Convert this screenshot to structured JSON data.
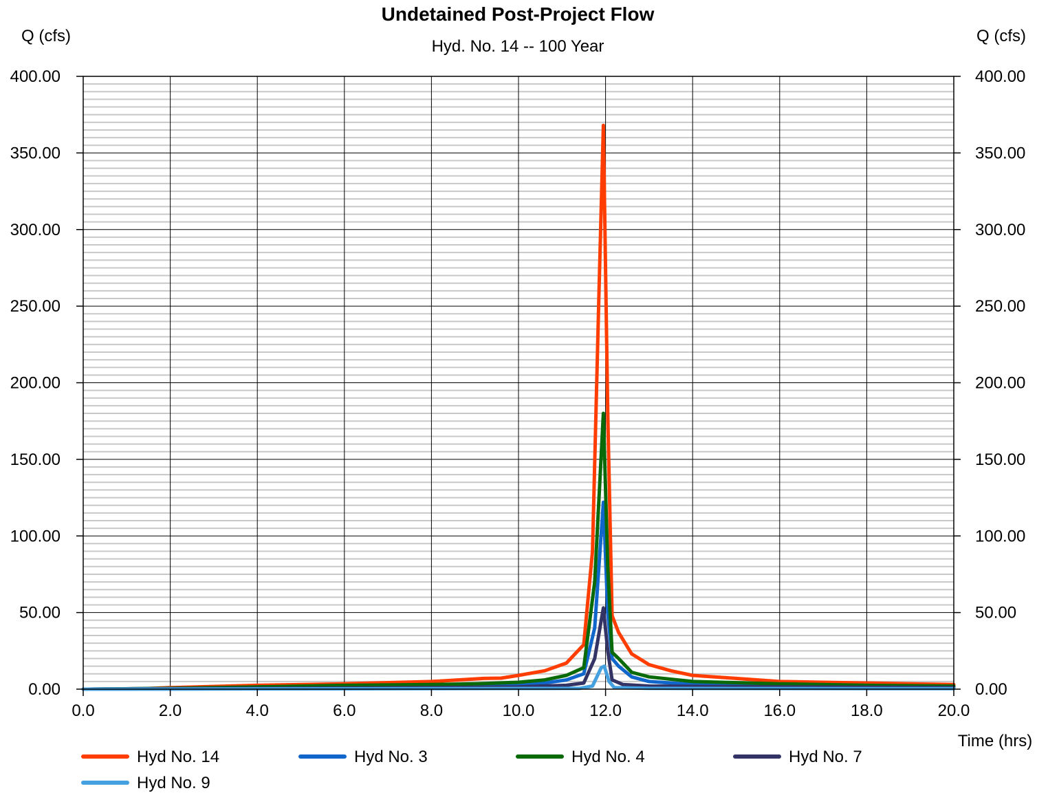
{
  "chart_data": {
    "type": "line",
    "title": "Undetained Post-Project Flow",
    "subtitle": "Hyd. No. 14 -- 100 Year",
    "ylabel_left": "Q (cfs)",
    "ylabel_right": "Q (cfs)",
    "xlabel": "Time (hrs)",
    "xlim": [
      0,
      20
    ],
    "ylim": [
      0,
      400
    ],
    "x_ticks": [
      "0.0",
      "2.0",
      "4.0",
      "6.0",
      "8.0",
      "10.0",
      "12.0",
      "14.0",
      "16.0",
      "18.0",
      "20.0"
    ],
    "y_ticks": [
      "0.00",
      "50.00",
      "100.00",
      "150.00",
      "200.00",
      "250.00",
      "300.00",
      "350.00",
      "400.00"
    ],
    "grid": true,
    "legend_position": "bottom",
    "series": [
      {
        "name": "Hyd No. 14",
        "color": "#ff3d00",
        "points": [
          [
            0,
            0
          ],
          [
            1.4,
            0.3
          ],
          [
            2,
            1
          ],
          [
            4,
            2.5
          ],
          [
            6,
            3.5
          ],
          [
            8,
            5
          ],
          [
            9.2,
            7
          ],
          [
            9.6,
            7.2
          ],
          [
            10,
            9
          ],
          [
            10.6,
            12
          ],
          [
            11.1,
            17
          ],
          [
            11.5,
            29
          ],
          [
            11.7,
            90
          ],
          [
            11.85,
            260
          ],
          [
            11.95,
            368
          ],
          [
            12.05,
            180
          ],
          [
            12.15,
            48
          ],
          [
            12.3,
            37
          ],
          [
            12.6,
            23
          ],
          [
            13,
            16
          ],
          [
            13.5,
            12
          ],
          [
            14,
            9
          ],
          [
            15,
            7
          ],
          [
            16,
            5
          ],
          [
            17,
            4.5
          ],
          [
            18,
            4
          ],
          [
            19,
            3.5
          ],
          [
            20,
            3
          ]
        ]
      },
      {
        "name": "Hyd No. 3",
        "color": "#1166cc",
        "points": [
          [
            0,
            0
          ],
          [
            2,
            0.5
          ],
          [
            4,
            1
          ],
          [
            6,
            1.5
          ],
          [
            8,
            2
          ],
          [
            9,
            2.5
          ],
          [
            10,
            3
          ],
          [
            10.6,
            4
          ],
          [
            11.1,
            6
          ],
          [
            11.5,
            10
          ],
          [
            11.75,
            40
          ],
          [
            11.95,
            122
          ],
          [
            12.05,
            50
          ],
          [
            12.15,
            20
          ],
          [
            12.3,
            15
          ],
          [
            12.6,
            8
          ],
          [
            13,
            5
          ],
          [
            14,
            3
          ],
          [
            16,
            2
          ],
          [
            18,
            1.5
          ],
          [
            20,
            1
          ]
        ]
      },
      {
        "name": "Hyd No. 4",
        "color": "#0a6a0a",
        "points": [
          [
            0,
            0
          ],
          [
            2,
            0.5
          ],
          [
            4,
            1.5
          ],
          [
            6,
            2.5
          ],
          [
            8,
            3
          ],
          [
            9,
            3.5
          ],
          [
            10,
            4.5
          ],
          [
            10.6,
            6
          ],
          [
            11.1,
            9
          ],
          [
            11.5,
            14
          ],
          [
            11.75,
            70
          ],
          [
            11.95,
            180
          ],
          [
            12.05,
            80
          ],
          [
            12.15,
            24
          ],
          [
            12.3,
            20
          ],
          [
            12.6,
            11
          ],
          [
            13,
            8
          ],
          [
            14,
            5
          ],
          [
            16,
            3.5
          ],
          [
            18,
            2.5
          ],
          [
            20,
            2
          ]
        ]
      },
      {
        "name": "Hyd No. 7",
        "color": "#333366",
        "points": [
          [
            0,
            0
          ],
          [
            4,
            0.5
          ],
          [
            8,
            1
          ],
          [
            10,
            1.5
          ],
          [
            11.1,
            2.5
          ],
          [
            11.5,
            4
          ],
          [
            11.75,
            20
          ],
          [
            11.95,
            53
          ],
          [
            12.05,
            25
          ],
          [
            12.15,
            6
          ],
          [
            12.4,
            3
          ],
          [
            13,
            2
          ],
          [
            16,
            1.5
          ],
          [
            20,
            1
          ]
        ]
      },
      {
        "name": "Hyd No. 9",
        "color": "#45a0e0",
        "points": [
          [
            0,
            0
          ],
          [
            8,
            0.3
          ],
          [
            11.4,
            0.5
          ],
          [
            11.7,
            2
          ],
          [
            11.9,
            14
          ],
          [
            11.97,
            15
          ],
          [
            12.08,
            5
          ],
          [
            12.2,
            1
          ],
          [
            13,
            0.5
          ],
          [
            20,
            0.3
          ]
        ]
      }
    ]
  }
}
